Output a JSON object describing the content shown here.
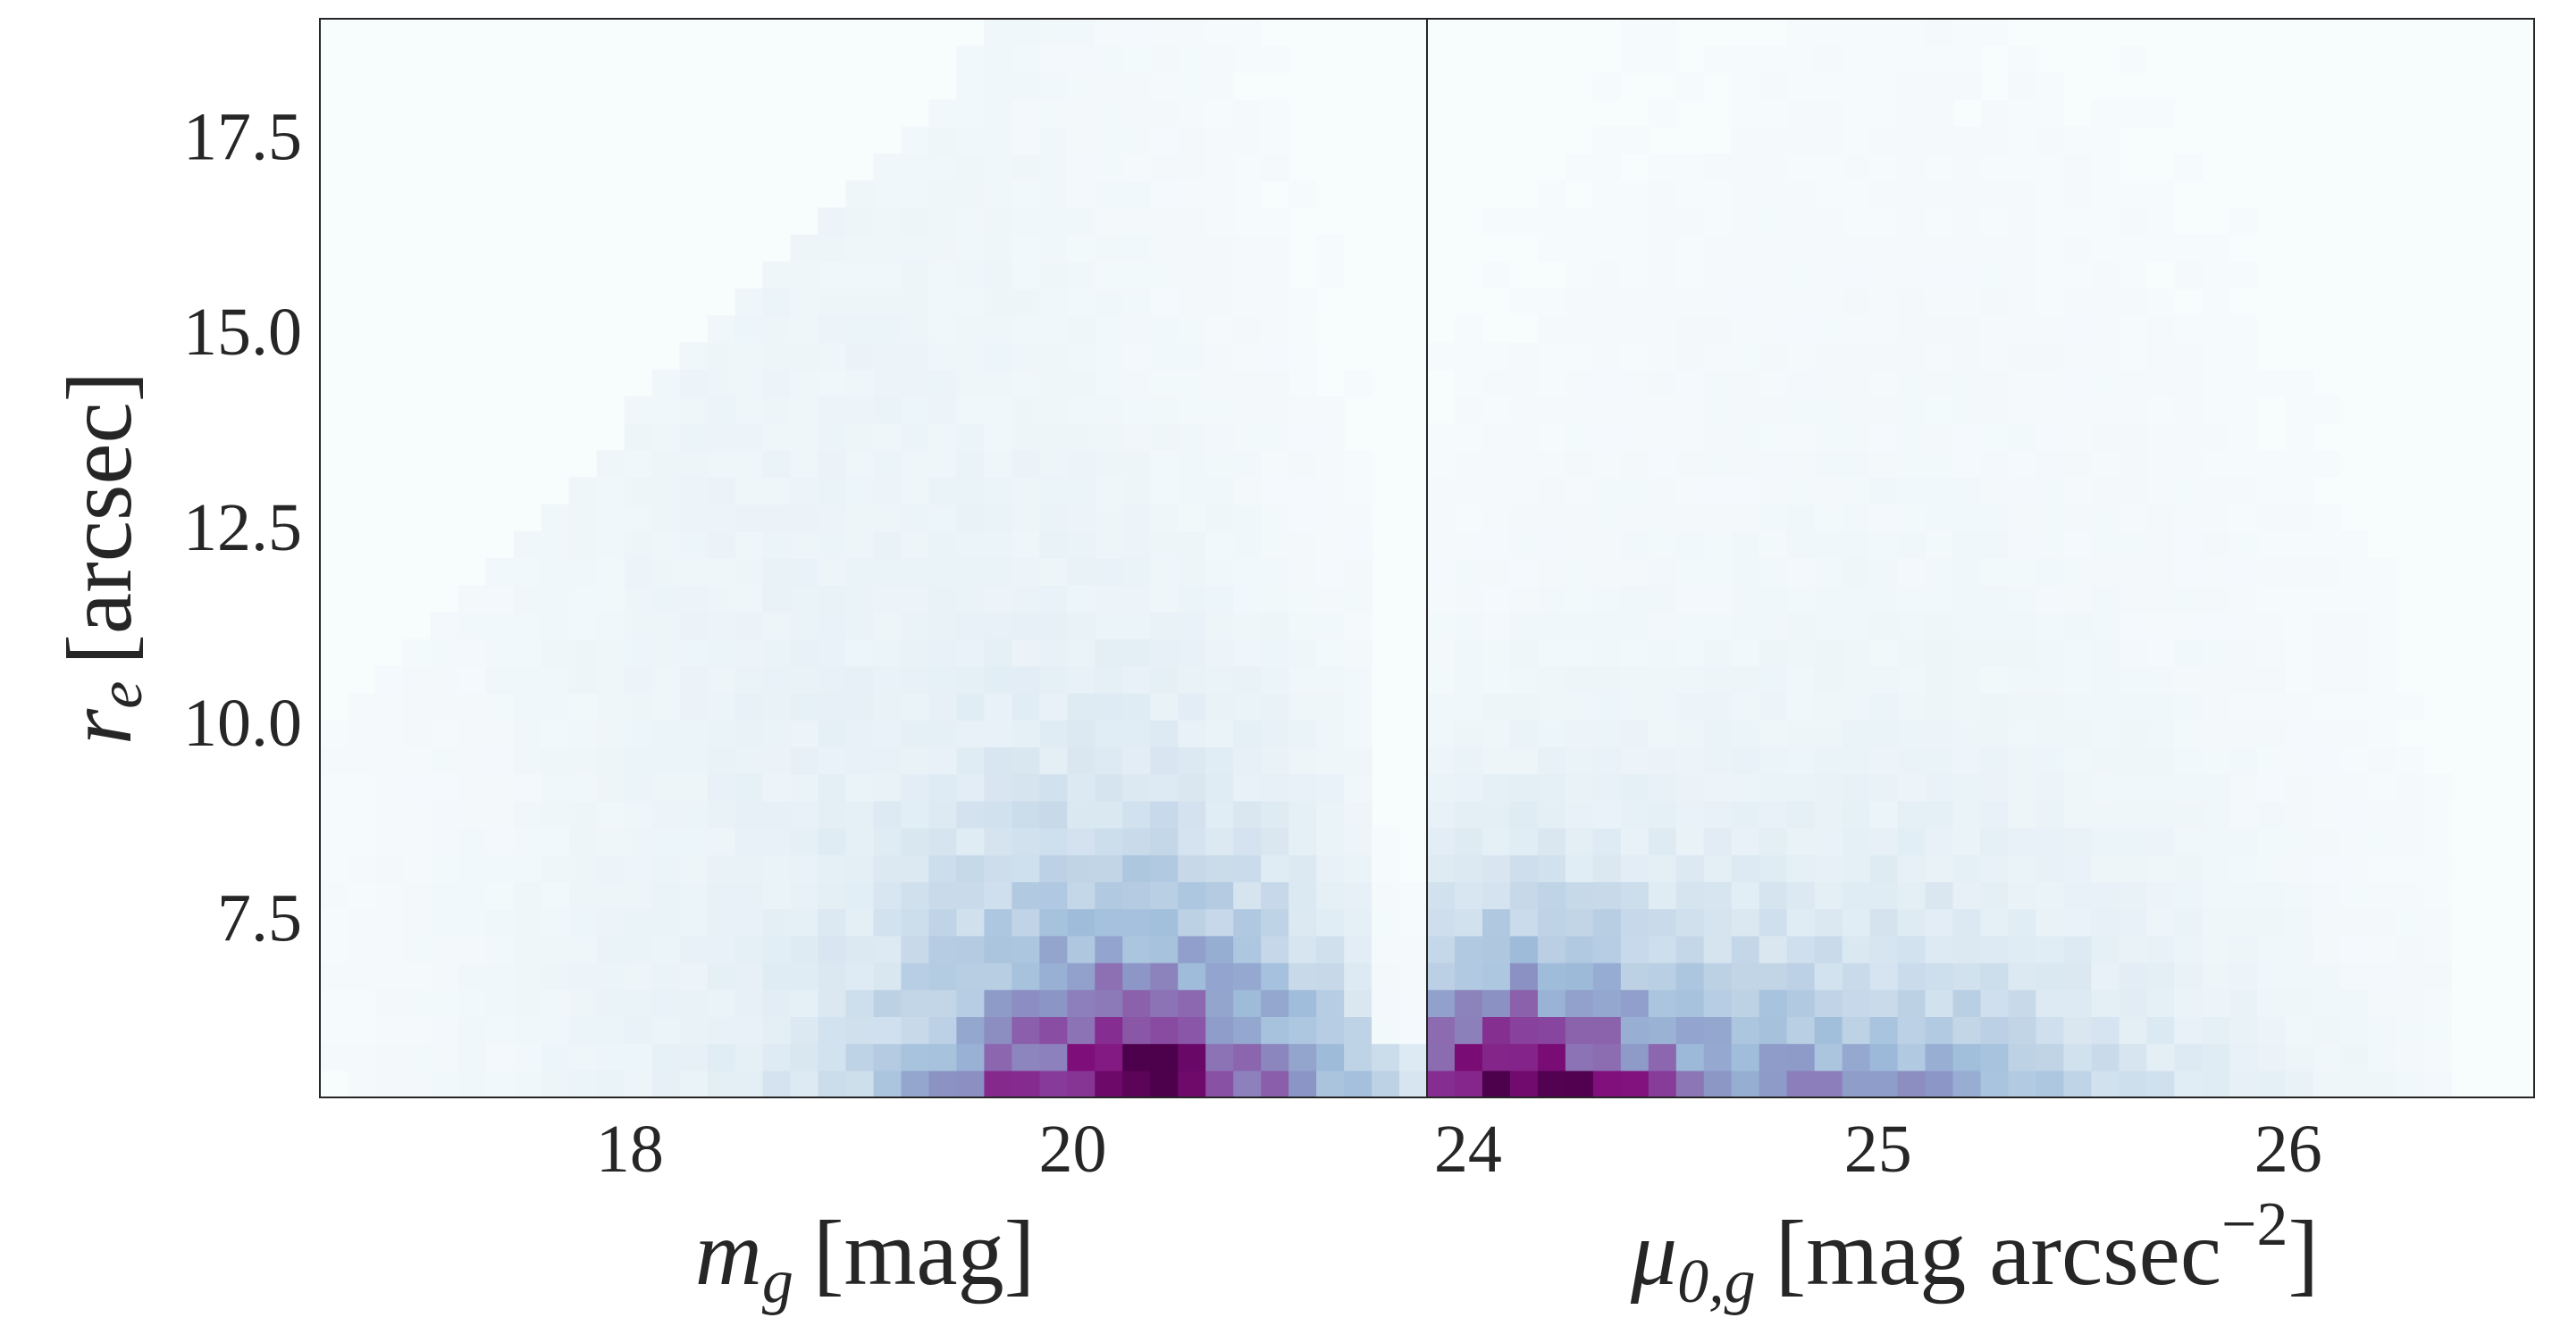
{
  "chart_data": [
    {
      "type": "heatmap",
      "panel": "left",
      "xlabel": {
        "var": "m",
        "sub": "g",
        "unit": "[mag]"
      },
      "ylabel": {
        "var": "r",
        "sub": "e",
        "unit": "[arcsec]"
      },
      "xlim": [
        16.6,
        21.6
      ],
      "ylim": [
        5.2,
        19.0
      ],
      "xticks": [
        18,
        20
      ],
      "yticks": [
        7.5,
        10.0,
        12.5,
        15.0,
        17.5
      ],
      "xtick_labels": [
        "18",
        "20"
      ],
      "ytick_labels": [
        "7.5",
        "10.0",
        "12.5",
        "15.0",
        "17.5"
      ],
      "colormap": "BuPu",
      "bins": {
        "nx": 40,
        "ny": 40
      }
    },
    {
      "type": "heatmap",
      "panel": "right",
      "xlabel": {
        "var": "μ",
        "sub": "0,g",
        "unit": "[mag arcsec",
        "sup": "−2",
        "close": "]"
      },
      "ylabel": {
        "var": "r",
        "sub": "e",
        "unit": "[arcsec]"
      },
      "xlim": [
        23.9,
        26.6
      ],
      "ylim": [
        5.2,
        19.0
      ],
      "xticks": [
        24,
        25,
        26
      ],
      "yticks": [
        7.5,
        10.0,
        12.5,
        15.0,
        17.5
      ],
      "xtick_labels": [
        "24",
        "25",
        "26"
      ],
      "ytick_labels": [],
      "colormap": "BuPu",
      "bins": {
        "nx": 40,
        "ny": 40
      }
    }
  ],
  "colors": {
    "colormap_stops": [
      "#f7fcfd",
      "#e0ecf4",
      "#bfd3e6",
      "#9ebcda",
      "#8c96c6",
      "#8c6bb1",
      "#88419d",
      "#810f7c",
      "#4d004b"
    ],
    "axes_edge": "#262626",
    "tick_text": "#262626"
  }
}
